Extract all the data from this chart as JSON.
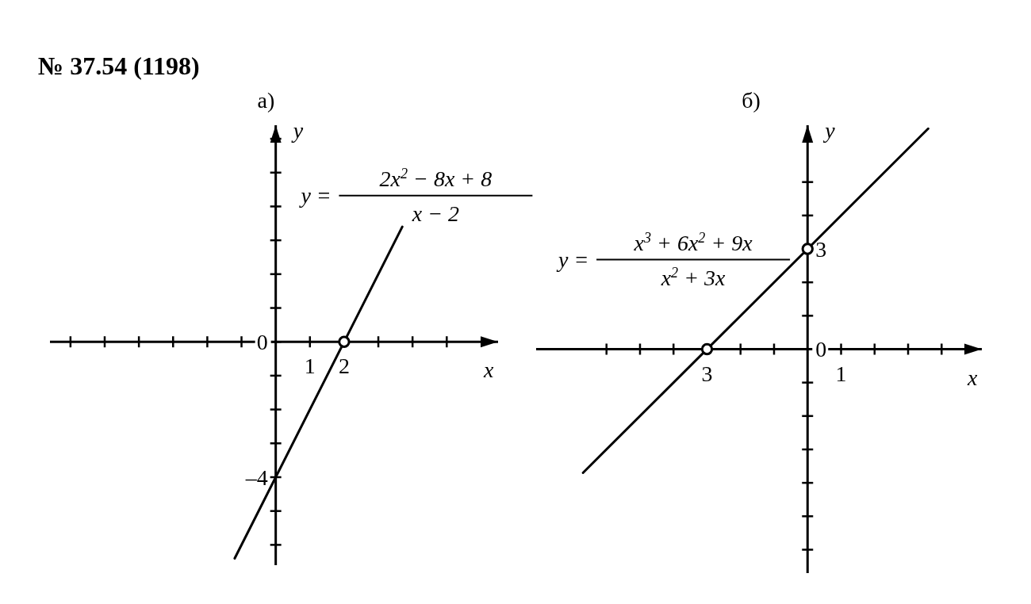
{
  "chart_data": [
    {
      "type": "line",
      "title": "№ 37.54 (1198)",
      "subtitle": "а)",
      "xlabel": "x",
      "ylabel": "y",
      "annotations": [
        "y =",
        "2x$^{2}$ − 8x + 8",
        "x − 2"
      ],
      "xlim": [
        -6.6,
        6.5
      ],
      "ylim": [
        -6.6,
        6.4
      ],
      "xticks": [
        {
          "value": -6,
          "label": null
        },
        {
          "value": -5,
          "label": null
        },
        {
          "value": -4,
          "label": null
        },
        {
          "value": -3,
          "label": null
        },
        {
          "value": -2,
          "label": null
        },
        {
          "value": -1,
          "label": null
        },
        {
          "value": 1,
          "label": "1"
        },
        {
          "value": 2,
          "label": "2"
        },
        {
          "value": 3,
          "label": null
        },
        {
          "value": 4,
          "label": null
        },
        {
          "value": 5,
          "label": null
        }
      ],
      "yticks": [
        {
          "value": -6,
          "label": null
        },
        {
          "value": -5,
          "label": null
        },
        {
          "value": -4,
          "label": "–4"
        },
        {
          "value": -3,
          "label": null
        },
        {
          "value": -2,
          "label": null
        },
        {
          "value": -1,
          "label": null
        },
        {
          "value": 0,
          "label": "0"
        },
        {
          "value": 1,
          "label": null
        },
        {
          "value": 2,
          "label": null
        },
        {
          "value": 3,
          "label": null
        },
        {
          "value": 4,
          "label": null
        },
        {
          "value": 5,
          "label": null
        },
        {
          "value": 6,
          "label": null
        }
      ],
      "series": [
        {
          "color": "#000000",
          "x": [
            -1.2,
            3.7
          ],
          "values": [
            -6.4,
            3.4
          ]
        },
        {
          "type": "scatter",
          "marker": "circle",
          "color": "#000000",
          "x": [
            2
          ],
          "values": [
            0
          ]
        }
      ]
    },
    {
      "type": "line",
      "subtitle": "б)",
      "xlabel": "x",
      "ylabel": "y",
      "annotations": [
        "y =",
        "x$^{3}$ + 6x$^{2}$ + 9x",
        "x$^{2}$ + 3x"
      ],
      "xlim": [
        -8.1,
        5.2
      ],
      "ylim": [
        -6.7,
        6.7
      ],
      "xticks": [
        {
          "value": -6,
          "label": null
        },
        {
          "value": -5,
          "label": null
        },
        {
          "value": -4,
          "label": null
        },
        {
          "value": -3,
          "label": "3"
        },
        {
          "value": -2,
          "label": null
        },
        {
          "value": -1,
          "label": null
        },
        {
          "value": 1,
          "label": "1"
        },
        {
          "value": 2,
          "label": null
        },
        {
          "value": 3,
          "label": null
        },
        {
          "value": 4,
          "label": null
        }
      ],
      "yticks": [
        {
          "value": -6,
          "label": null
        },
        {
          "value": -5,
          "label": null
        },
        {
          "value": -4,
          "label": null
        },
        {
          "value": -3,
          "label": null
        },
        {
          "value": -2,
          "label": null
        },
        {
          "value": -1,
          "label": null
        },
        {
          "value": 0,
          "label": "0"
        },
        {
          "value": 1,
          "label": null
        },
        {
          "value": 2,
          "label": null
        },
        {
          "value": 3,
          "label": "3"
        },
        {
          "value": 4,
          "label": null
        },
        {
          "value": 5,
          "label": null
        }
      ],
      "series": [
        {
          "color": "#000000",
          "x": [
            -6.7,
            3.6
          ],
          "values": [
            -3.7,
            6.6
          ]
        },
        {
          "type": "scatter",
          "marker": "circle",
          "color": "#000000",
          "x": [
            -3,
            0
          ],
          "values": [
            0,
            3
          ]
        }
      ]
    }
  ]
}
